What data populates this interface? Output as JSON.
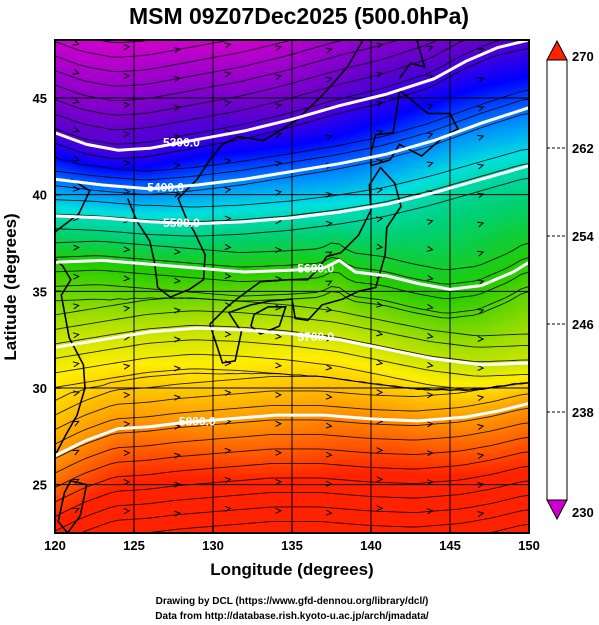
{
  "title": "MSM 09Z07Dec2025 (500.0hPa)",
  "x_axis": {
    "label": "Longitude (degrees)",
    "range": [
      120,
      150
    ],
    "ticks": [
      120,
      125,
      130,
      135,
      140,
      145,
      150
    ]
  },
  "y_axis": {
    "label": "Latitude  (degrees)",
    "range": [
      22.5,
      48
    ],
    "ticks": [
      25,
      30,
      35,
      40,
      45
    ]
  },
  "colorbar": {
    "range": [
      230,
      270
    ],
    "labels": [
      230,
      238,
      246,
      254,
      262,
      270
    ],
    "colors": [
      "#cc00cc",
      "#6600cc",
      "#0000ff",
      "#0088ff",
      "#00e0e0",
      "#00d070",
      "#22cc00",
      "#99dd00",
      "#ffee00",
      "#ff9900",
      "#ff2200"
    ]
  },
  "contours": [
    {
      "label": "5300.0",
      "points": [
        [
          120,
          43.2
        ],
        [
          122,
          42.6
        ],
        [
          124,
          42.3
        ],
        [
          126,
          42.4
        ],
        [
          128,
          42.7
        ],
        [
          130,
          43.0
        ],
        [
          132,
          43.3
        ],
        [
          135,
          43.9
        ],
        [
          138,
          44.6
        ],
        [
          141,
          45.2
        ],
        [
          144,
          46.0
        ],
        [
          146,
          46.9
        ],
        [
          148,
          47.6
        ],
        [
          150,
          48.0
        ]
      ]
    },
    {
      "label": "5400.0",
      "points": [
        [
          120,
          40.8
        ],
        [
          123,
          40.5
        ],
        [
          126,
          40.3
        ],
        [
          129,
          40.5
        ],
        [
          132,
          40.8
        ],
        [
          135,
          41.2
        ],
        [
          138,
          41.6
        ],
        [
          141,
          42.1
        ],
        [
          144,
          42.8
        ],
        [
          147,
          43.7
        ],
        [
          150,
          44.5
        ]
      ]
    },
    {
      "label": "5500.0",
      "points": [
        [
          120,
          38.9
        ],
        [
          123,
          38.8
        ],
        [
          126,
          38.6
        ],
        [
          129,
          38.5
        ],
        [
          132,
          38.6
        ],
        [
          135,
          38.8
        ],
        [
          138,
          39.1
        ],
        [
          141,
          39.5
        ],
        [
          144,
          40.1
        ],
        [
          147,
          40.8
        ],
        [
          150,
          41.5
        ]
      ]
    },
    {
      "label": "5600.0",
      "points": [
        [
          120,
          36.5
        ],
        [
          123,
          36.6
        ],
        [
          126,
          36.4
        ],
        [
          129,
          36.2
        ],
        [
          132,
          36.0
        ],
        [
          135,
          36.1
        ],
        [
          137,
          36.2
        ],
        [
          138,
          36.6
        ],
        [
          139,
          36.0
        ],
        [
          141,
          35.8
        ],
        [
          143,
          35.4
        ],
        [
          145,
          35.1
        ],
        [
          147,
          35.3
        ],
        [
          149,
          36.0
        ],
        [
          150,
          36.5
        ]
      ]
    },
    {
      "label": "5700.0",
      "points": [
        [
          120,
          32.1
        ],
        [
          123,
          32.5
        ],
        [
          126,
          32.9
        ],
        [
          129,
          33.1
        ],
        [
          132,
          33.0
        ],
        [
          135,
          32.8
        ],
        [
          138,
          32.5
        ],
        [
          141,
          32.0
        ],
        [
          144,
          31.5
        ],
        [
          147,
          31.2
        ],
        [
          150,
          31.3
        ]
      ]
    },
    {
      "label": "5800.0",
      "points": [
        [
          120,
          26.5
        ],
        [
          122,
          27.3
        ],
        [
          124,
          27.9
        ],
        [
          126,
          28.0
        ],
        [
          128,
          28.2
        ],
        [
          131,
          28.4
        ],
        [
          134,
          28.6
        ],
        [
          137,
          28.6
        ],
        [
          140,
          28.4
        ],
        [
          143,
          28.3
        ],
        [
          146,
          28.5
        ],
        [
          148,
          28.8
        ],
        [
          150,
          29.2
        ]
      ]
    }
  ],
  "credits": [
    "Drawing by DCL (https://www.gfd-dennou.org/library/dcl/)",
    "Data from http://database.rish.kyoto-u.ac.jp/arch/jmadata/"
  ]
}
